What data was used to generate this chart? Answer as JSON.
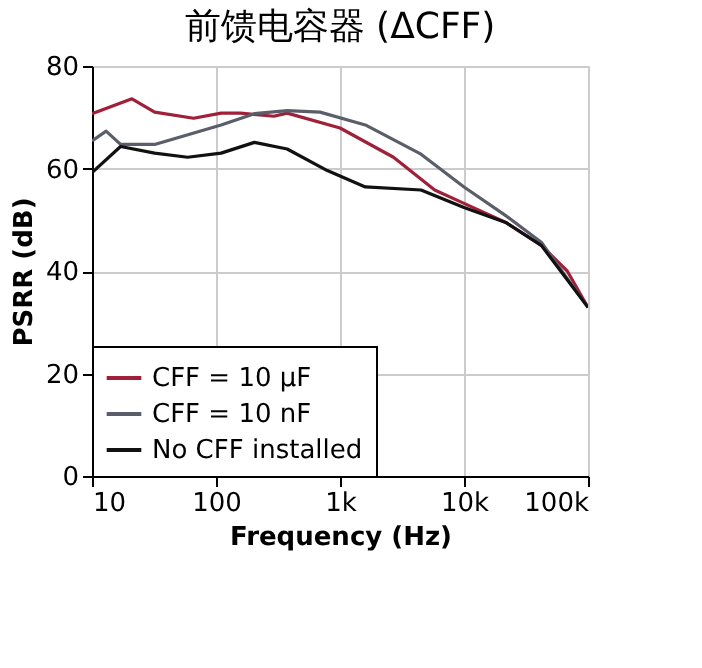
{
  "chart_data": {
    "type": "line",
    "title": "前馈电容器 (ΔCFF)",
    "xlabel": "Frequency (Hz)",
    "ylabel": "PSRR (dB)",
    "log": "x",
    "xlim": [
      10,
      100000
    ],
    "xticks": [
      10,
      100,
      {
        "value": 1000,
        "label": "1k"
      },
      {
        "value": 10000,
        "label": "10k"
      },
      {
        "value": 100000,
        "label": "100k"
      }
    ],
    "ylim": [
      0,
      80
    ],
    "yticks": [
      0,
      20,
      40,
      60,
      80
    ],
    "grid": true,
    "legend": "bottom left",
    "series": [
      {
        "name": "CFF = 10 µF",
        "color": "#a0203a",
        "x": [
          10,
          21,
          32,
          66,
          110,
          158,
          293,
          375,
          1000,
          2700,
          5800,
          10000,
          22000,
          42000,
          68000,
          100000
        ],
        "values": [
          70.7,
          73.6,
          71,
          69.8,
          70.8,
          70.8,
          70.2,
          70.8,
          67.9,
          62.2,
          55.8,
          53.2,
          49.4,
          45,
          40,
          32.9
        ]
      },
      {
        "name": "CFF = 10 nF",
        "color": "#5a5e6a",
        "x": [
          10,
          13,
          17,
          32,
          110,
          204,
          375,
          690,
          1600,
          4500,
          10000,
          22000,
          42000,
          100000
        ],
        "values": [
          65.4,
          67.3,
          64.7,
          64.7,
          68.5,
          70.7,
          71.3,
          71,
          68.5,
          62.8,
          56.4,
          50.7,
          45.6,
          32.9
        ]
      },
      {
        "name": "No CFF installed",
        "color": "#111111",
        "x": [
          10,
          17,
          32,
          59,
          110,
          204,
          375,
          790,
          1600,
          4500,
          10000,
          22000,
          42000,
          100000
        ],
        "values": [
          59.2,
          64.3,
          63,
          62.2,
          63,
          65.1,
          63.8,
          59.6,
          56.4,
          55.8,
          52.4,
          49.4,
          45,
          32.9
        ]
      }
    ]
  }
}
